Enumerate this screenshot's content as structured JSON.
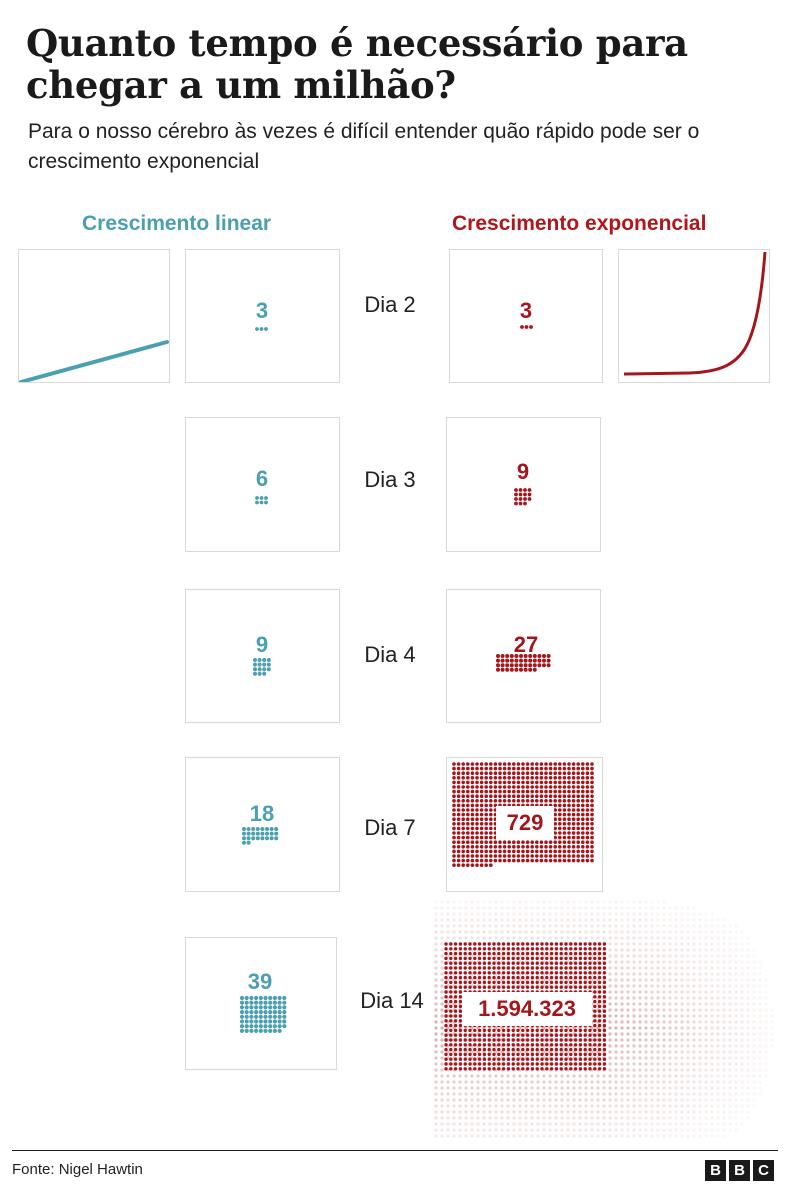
{
  "title": "Quanto tempo é necessário para chegar a um milhão?",
  "subtitle": "Para o nosso cérebro às vezes é difícil entender quão rápido pode ser o crescimento exponencial",
  "linear_heading": "Crescimento linear",
  "exponential_heading": "Crescimento exponencial",
  "colors": {
    "linear": "#4a9fb0",
    "exponential": "#a5161c",
    "border": "#d9d9d9"
  },
  "rows": [
    {
      "day": "Dia 2",
      "linear": "3",
      "exponential": "3"
    },
    {
      "day": "Dia 3",
      "linear": "6",
      "exponential": "9"
    },
    {
      "day": "Dia 4",
      "linear": "9",
      "exponential": "27"
    },
    {
      "day": "Dia 7",
      "linear": "18",
      "exponential": "729"
    },
    {
      "day": "Dia 14",
      "linear": "39",
      "exponential": "1.594.323"
    }
  ],
  "source": "Fonte: Nigel Hawtin",
  "logo": [
    "B",
    "B",
    "C"
  ]
}
